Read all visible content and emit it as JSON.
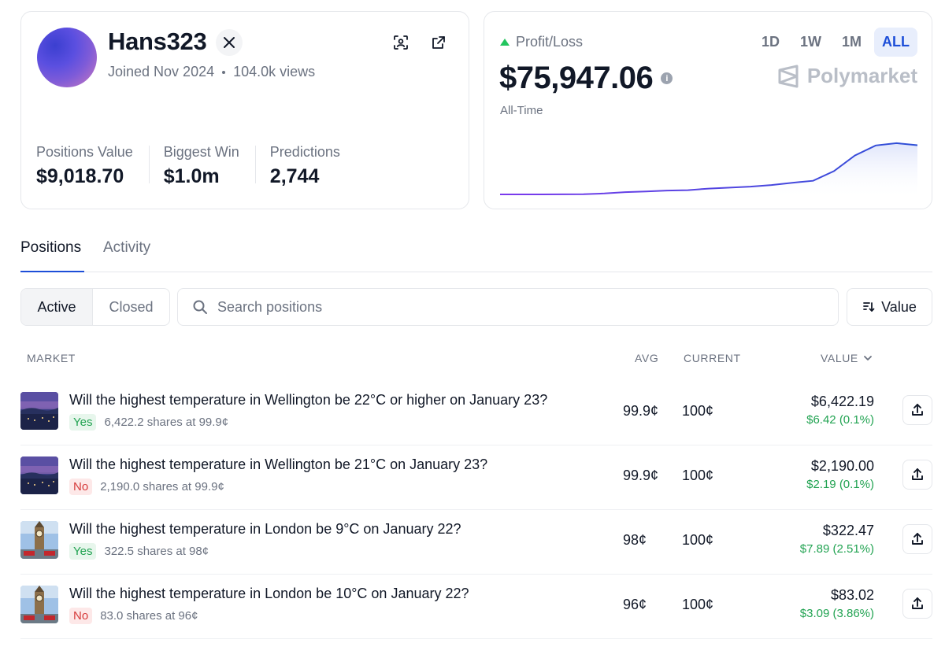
{
  "profile": {
    "username": "Hans323",
    "joined": "Joined Nov 2024",
    "views": "104.0k views",
    "stats": [
      {
        "label": "Positions Value",
        "value": "$9,018.70"
      },
      {
        "label": "Biggest Win",
        "value": "$1.0m"
      },
      {
        "label": "Predictions",
        "value": "2,744"
      }
    ]
  },
  "pnl": {
    "label": "Profit/Loss",
    "value": "$75,947.06",
    "period_label": "All-Time",
    "ranges": [
      "1D",
      "1W",
      "1M",
      "ALL"
    ],
    "active_range": "ALL",
    "brand": "Polymarket",
    "colors": {
      "line_start": "#7c3aed",
      "line_end": "#2d4fd6",
      "fill": "#e8ecfb",
      "up": "#22c55e"
    }
  },
  "chart_data": {
    "type": "area",
    "title": "Profit/Loss",
    "xlabel": "",
    "ylabel": "",
    "x": [
      0,
      5,
      10,
      15,
      20,
      25,
      30,
      35,
      40,
      45,
      50,
      55,
      60,
      65,
      70,
      75,
      80,
      85,
      90,
      95,
      100
    ],
    "values": [
      0,
      0,
      0,
      100,
      300,
      1500,
      3500,
      4500,
      6000,
      6500,
      9000,
      10500,
      12000,
      14500,
      18000,
      21000,
      36000,
      60000,
      75500,
      79000,
      75947
    ],
    "ylim": [
      0,
      85000
    ],
    "grid": false
  },
  "tabs": [
    {
      "label": "Positions"
    },
    {
      "label": "Activity"
    }
  ],
  "filters": {
    "active_label": "Active",
    "closed_label": "Closed",
    "search_placeholder": "Search positions",
    "sort_label": "Value"
  },
  "table": {
    "headers": {
      "market": "MARKET",
      "avg": "AVG",
      "current": "CURRENT",
      "value": "VALUE"
    },
    "rows": [
      {
        "question": "Will the highest temperature in Wellington be 22°C or higher on January 23?",
        "outcome": "Yes",
        "shares": "6,422.2 shares at 99.9¢",
        "avg": "99.9¢",
        "current": "100¢",
        "value": "$6,422.19",
        "change": "$6.42 (0.1%)",
        "image": "wellington"
      },
      {
        "question": "Will the highest temperature in Wellington be 21°C on January 23?",
        "outcome": "No",
        "shares": "2,190.0 shares at 99.9¢",
        "avg": "99.9¢",
        "current": "100¢",
        "value": "$2,190.00",
        "change": "$2.19 (0.1%)",
        "image": "wellington"
      },
      {
        "question": "Will the highest temperature in London be 9°C on January 22?",
        "outcome": "Yes",
        "shares": "322.5 shares at 98¢",
        "avg": "98¢",
        "current": "100¢",
        "value": "$322.47",
        "change": "$7.89 (2.51%)",
        "image": "london"
      },
      {
        "question": "Will the highest temperature in London be 10°C on January 22?",
        "outcome": "No",
        "shares": "83.0 shares at 96¢",
        "avg": "96¢",
        "current": "100¢",
        "value": "$83.02",
        "change": "$3.09 (3.86%)",
        "image": "london"
      }
    ]
  }
}
